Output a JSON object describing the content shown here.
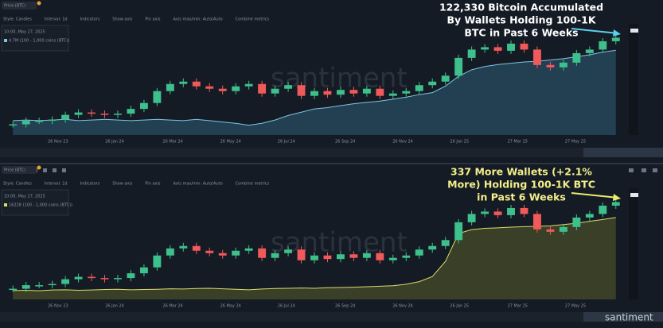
{
  "toolbar": [
    "Style: Candles",
    "Interval: 1d",
    "Indicators",
    "Show axis",
    "Pin axis",
    "Axis max/min: Auto/Auto",
    "Combine metrics"
  ],
  "logo": "santiment",
  "chart_data": [
    {
      "type": "candlestick",
      "timestamp": "10:00, May 27, 2025",
      "watermark": "santiment",
      "annotation": [
        "122,330 Bitcoin Accumulated",
        "By Wallets Holding 100-1K",
        "BTC in Past 6 Weeks"
      ],
      "annotation_color": "#ffffff",
      "arrow_color": "#5ad0f0",
      "x_labels": [
        "26 Nov 23",
        "26 Jan 24",
        "26 Mar 24",
        "26 May 24",
        "26 Jul 24",
        "26 Sep 24",
        "26 Nov 24",
        "26 Jan 25",
        "27 Mar 25",
        "27 May 25"
      ],
      "ylim": [
        25,
        112
      ],
      "y2lim": [
        3.4,
        4.8
      ],
      "series": [
        {
          "name": "Price (BTC)",
          "up_color": "#3ec08d",
          "down_color": "#f05a5a",
          "values": [
            34,
            37,
            37,
            38,
            42,
            44,
            43,
            42,
            43,
            47,
            52,
            62,
            68,
            70,
            66,
            64,
            62,
            66,
            68,
            60,
            64,
            67,
            58,
            62,
            59,
            63,
            60,
            64,
            58,
            60,
            62,
            67,
            70,
            75,
            90,
            97,
            99,
            96,
            102,
            97,
            84,
            82,
            86,
            94,
            97,
            104,
            107
          ]
        },
        {
          "name": "4.7M (100 - 1,000 coins (BTC))",
          "color": "#7ec4e0",
          "fill": "#2f5f78",
          "axis": "y2",
          "values": [
            3.62,
            3.63,
            3.62,
            3.63,
            3.64,
            3.62,
            3.63,
            3.64,
            3.63,
            3.62,
            3.63,
            3.64,
            3.63,
            3.62,
            3.64,
            3.62,
            3.6,
            3.58,
            3.55,
            3.58,
            3.63,
            3.7,
            3.75,
            3.8,
            3.82,
            3.85,
            3.88,
            3.9,
            3.92,
            3.95,
            3.98,
            4.02,
            4.05,
            4.15,
            4.3,
            4.4,
            4.45,
            4.48,
            4.5,
            4.52,
            4.53,
            4.55,
            4.57,
            4.6,
            4.63,
            4.67,
            4.7
          ]
        }
      ]
    },
    {
      "type": "candlestick",
      "timestamp": "10:00, May 27, 2025",
      "watermark": "santiment",
      "annotation": [
        "337 More Wallets (+2.1%",
        "More) Holding 100-1K BTC",
        "in Past 6 Weeks"
      ],
      "annotation_color": "#f3f08a",
      "arrow_color": "#e8ee70",
      "x_labels": [
        "26 Nov 23",
        "26 Jan 24",
        "26 Mar 24",
        "26 May 24",
        "26 Jul 24",
        "26 Sep 24",
        "26 Nov 24",
        "26 Jan 25",
        "27 Mar 25",
        "27 May 25"
      ],
      "ylim": [
        25,
        112
      ],
      "y2lim": [
        13000,
        16600
      ],
      "series": [
        {
          "name": "Price (BTC)",
          "up_color": "#3ec08d",
          "down_color": "#f05a5a",
          "values": [
            34,
            37,
            37,
            38,
            42,
            44,
            43,
            42,
            43,
            47,
            52,
            62,
            68,
            70,
            66,
            64,
            62,
            66,
            68,
            60,
            64,
            67,
            58,
            62,
            59,
            63,
            60,
            64,
            58,
            60,
            62,
            67,
            70,
            75,
            90,
            97,
            99,
            96,
            102,
            97,
            84,
            82,
            86,
            94,
            97,
            104,
            107
          ]
        },
        {
          "name": "16228 (100 - 1,000 coins (BTC))",
          "color": "#d8dc6a",
          "fill": "#5a5e2a",
          "axis": "y2",
          "values": [
            13350,
            13360,
            13340,
            13370,
            13380,
            13360,
            13370,
            13390,
            13400,
            13380,
            13390,
            13400,
            13420,
            13410,
            13430,
            13440,
            13420,
            13400,
            13380,
            13410,
            13430,
            13440,
            13450,
            13440,
            13460,
            13470,
            13480,
            13500,
            13520,
            13540,
            13600,
            13700,
            13900,
            14500,
            15600,
            15750,
            15800,
            15820,
            15850,
            15870,
            15880,
            15900,
            15950,
            16000,
            16080,
            16150,
            16228
          ]
        }
      ]
    }
  ]
}
